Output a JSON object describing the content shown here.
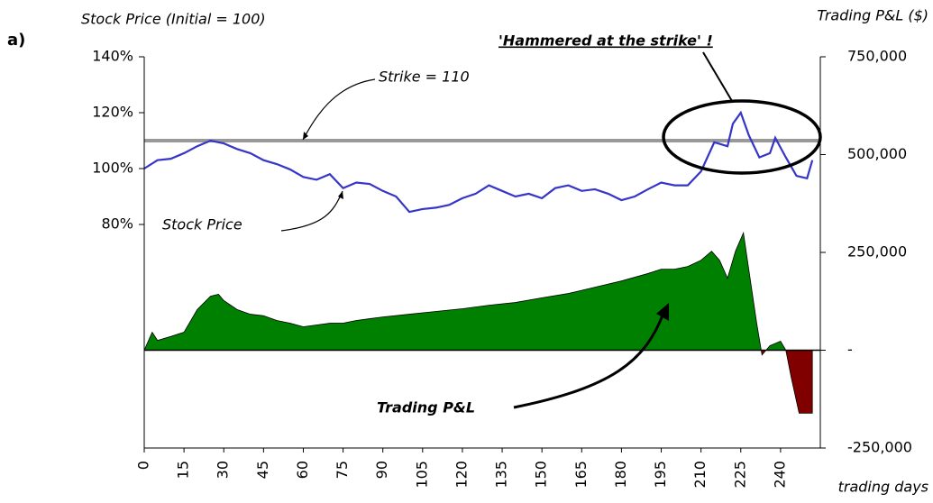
{
  "chart_data": {
    "type": "line-area",
    "panel_label": "a)",
    "ylabel": "Stock Price (Initial = 100)",
    "y2label": "Trading P&L ($)",
    "xlabel": "trading days",
    "xlim": [
      0,
      255
    ],
    "xticks": [
      0,
      15,
      30,
      45,
      60,
      75,
      90,
      105,
      120,
      135,
      150,
      165,
      180,
      195,
      210,
      225,
      240
    ],
    "ylim": [
      0,
      140
    ],
    "yticks": [
      {
        "value": 80,
        "label": "80%"
      },
      {
        "value": 100,
        "label": "100%"
      },
      {
        "value": 120,
        "label": "120%"
      },
      {
        "value": 140,
        "label": "140%"
      }
    ],
    "y2lim": [
      -250000,
      750000
    ],
    "y2ticks": [
      {
        "value": -250000,
        "label": "-250,000"
      },
      {
        "value": 0,
        "label": "-"
      },
      {
        "value": 250000,
        "label": "250,000"
      },
      {
        "value": 500000,
        "label": "500,000"
      },
      {
        "value": 750000,
        "label": "750,000"
      }
    ],
    "strike_line": {
      "value": 110,
      "color": "#999999",
      "label": "Strike = 110"
    },
    "annotations": [
      "'Hammered at the strike' !"
    ],
    "series": [
      {
        "name": "Stock Price",
        "color": "#3535c8",
        "x": [
          0,
          5,
          10,
          15,
          20,
          25,
          30,
          35,
          40,
          45,
          50,
          55,
          60,
          65,
          70,
          75,
          80,
          85,
          90,
          95,
          100,
          105,
          110,
          115,
          120,
          125,
          130,
          135,
          140,
          145,
          150,
          155,
          160,
          165,
          170,
          175,
          180,
          185,
          190,
          195,
          200,
          205,
          210,
          215,
          220,
          222,
          225,
          228,
          232,
          236,
          238,
          242,
          246,
          250,
          252
        ],
        "values": [
          100,
          103,
          103.5,
          105.5,
          108,
          110,
          109,
          107,
          105.5,
          103,
          101.6,
          99.7,
          97,
          96,
          98,
          93,
          95,
          94.5,
          92,
          90,
          84.5,
          85.5,
          86,
          87,
          89.4,
          91,
          94,
          92,
          90,
          91,
          89.4,
          93,
          94,
          92,
          92.6,
          91,
          88.7,
          90,
          92.6,
          95,
          94,
          94,
          99,
          109.4,
          108,
          116,
          120,
          112,
          104,
          105.5,
          111,
          104,
          97.4,
          96.5,
          103
        ]
      },
      {
        "name": "Trading P&L",
        "axis": "y2",
        "color": "#008000",
        "negative_color": "#800000",
        "x": [
          0,
          3,
          5,
          10,
          15,
          20,
          25,
          28,
          30,
          35,
          40,
          45,
          50,
          55,
          60,
          65,
          70,
          75,
          80,
          85,
          90,
          100,
          110,
          120,
          130,
          140,
          150,
          160,
          170,
          180,
          190,
          195,
          200,
          205,
          210,
          214,
          217,
          220,
          223,
          226,
          228,
          231,
          233,
          236,
          240,
          242,
          244,
          247,
          252
        ],
        "values": [
          0,
          46000,
          25000,
          35000,
          46000,
          104000,
          138000,
          143000,
          127000,
          104000,
          92000,
          88000,
          76000,
          69000,
          60000,
          64500,
          69000,
          69000,
          76000,
          80500,
          85000,
          92000,
          99000,
          106000,
          115000,
          122000,
          134000,
          145000,
          161000,
          177000,
          196000,
          207000,
          207000,
          214000,
          230000,
          253000,
          230000,
          184000,
          253000,
          300000,
          207000,
          69000,
          -12000,
          11500,
          23000,
          0,
          -69000,
          -161000,
          -161000
        ]
      }
    ]
  }
}
